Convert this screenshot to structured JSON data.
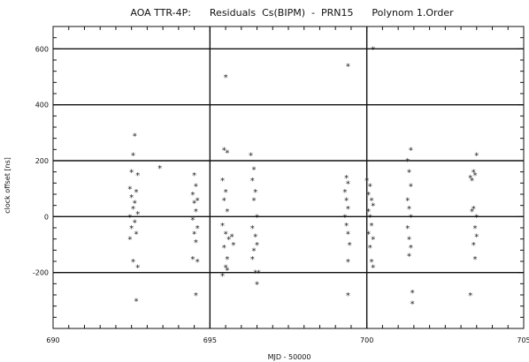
{
  "chart_data": {
    "type": "scatter",
    "title": "AOA TTR-4P:      Residuals  Cs(BIPM)  -  PRN15      Polynom 1.Order",
    "xlabel": "MJD - 50000",
    "ylabel": "clock offset [ns]",
    "xlim": [
      690,
      705
    ],
    "ylim": [
      -400,
      680
    ],
    "x_ticks": [
      690,
      695,
      700,
      705
    ],
    "y_ticks": [
      -200,
      0,
      200,
      400,
      600
    ],
    "grid": true,
    "series": [
      {
        "marker": "*",
        "points": [
          {
            "x": 692.6,
            "y": 290
          },
          {
            "x": 692.55,
            "y": 220
          },
          {
            "x": 692.5,
            "y": 160
          },
          {
            "x": 692.7,
            "y": 150
          },
          {
            "x": 692.45,
            "y": 100
          },
          {
            "x": 692.65,
            "y": 90
          },
          {
            "x": 692.5,
            "y": 70
          },
          {
            "x": 692.6,
            "y": 50
          },
          {
            "x": 692.55,
            "y": 30
          },
          {
            "x": 692.7,
            "y": 10
          },
          {
            "x": 692.45,
            "y": 0
          },
          {
            "x": 692.6,
            "y": -20
          },
          {
            "x": 692.5,
            "y": -40
          },
          {
            "x": 692.65,
            "y": -60
          },
          {
            "x": 692.45,
            "y": -80
          },
          {
            "x": 692.55,
            "y": -160
          },
          {
            "x": 692.7,
            "y": -180
          },
          {
            "x": 692.65,
            "y": -300
          },
          {
            "x": 693.4,
            "y": 175
          },
          {
            "x": 694.5,
            "y": 150
          },
          {
            "x": 694.55,
            "y": 110
          },
          {
            "x": 694.45,
            "y": 80
          },
          {
            "x": 694.6,
            "y": 60
          },
          {
            "x": 694.5,
            "y": 50
          },
          {
            "x": 694.55,
            "y": 20
          },
          {
            "x": 694.45,
            "y": -10
          },
          {
            "x": 694.6,
            "y": -40
          },
          {
            "x": 694.5,
            "y": -60
          },
          {
            "x": 694.55,
            "y": -90
          },
          {
            "x": 694.45,
            "y": -150
          },
          {
            "x": 694.6,
            "y": -160
          },
          {
            "x": 694.55,
            "y": -280
          },
          {
            "x": 695.5,
            "y": 500
          },
          {
            "x": 695.45,
            "y": 240
          },
          {
            "x": 695.55,
            "y": 230
          },
          {
            "x": 695.4,
            "y": 130
          },
          {
            "x": 695.5,
            "y": 90
          },
          {
            "x": 695.45,
            "y": 60
          },
          {
            "x": 695.55,
            "y": 20
          },
          {
            "x": 695.4,
            "y": -30
          },
          {
            "x": 695.5,
            "y": -60
          },
          {
            "x": 695.6,
            "y": -80
          },
          {
            "x": 695.45,
            "y": -110
          },
          {
            "x": 695.55,
            "y": -150
          },
          {
            "x": 695.5,
            "y": -180
          },
          {
            "x": 695.4,
            "y": -210
          },
          {
            "x": 695.55,
            "y": -190
          },
          {
            "x": 695.7,
            "y": -70
          },
          {
            "x": 695.75,
            "y": -100
          },
          {
            "x": 696.3,
            "y": 220
          },
          {
            "x": 696.4,
            "y": 170
          },
          {
            "x": 696.35,
            "y": 130
          },
          {
            "x": 696.45,
            "y": 90
          },
          {
            "x": 696.4,
            "y": 60
          },
          {
            "x": 696.5,
            "y": 0
          },
          {
            "x": 696.35,
            "y": -40
          },
          {
            "x": 696.45,
            "y": -70
          },
          {
            "x": 696.5,
            "y": -100
          },
          {
            "x": 696.4,
            "y": -120
          },
          {
            "x": 696.35,
            "y": -150
          },
          {
            "x": 696.45,
            "y": -200
          },
          {
            "x": 696.55,
            "y": -200
          },
          {
            "x": 696.5,
            "y": -240
          },
          {
            "x": 699.4,
            "y": 540
          },
          {
            "x": 699.35,
            "y": 140
          },
          {
            "x": 699.4,
            "y": 120
          },
          {
            "x": 699.3,
            "y": 90
          },
          {
            "x": 699.35,
            "y": 60
          },
          {
            "x": 699.4,
            "y": 30
          },
          {
            "x": 699.3,
            "y": 0
          },
          {
            "x": 699.35,
            "y": -30
          },
          {
            "x": 699.4,
            "y": -60
          },
          {
            "x": 699.45,
            "y": -100
          },
          {
            "x": 699.4,
            "y": -160
          },
          {
            "x": 699.4,
            "y": -280
          },
          {
            "x": 700.2,
            "y": 600
          },
          {
            "x": 700.0,
            "y": 130
          },
          {
            "x": 700.1,
            "y": 110
          },
          {
            "x": 700.05,
            "y": 80
          },
          {
            "x": 700.15,
            "y": 60
          },
          {
            "x": 700.2,
            "y": 40
          },
          {
            "x": 700.05,
            "y": 20
          },
          {
            "x": 700.1,
            "y": 0
          },
          {
            "x": 700.15,
            "y": -30
          },
          {
            "x": 700.05,
            "y": -60
          },
          {
            "x": 700.2,
            "y": -80
          },
          {
            "x": 700.1,
            "y": -110
          },
          {
            "x": 700.15,
            "y": -160
          },
          {
            "x": 700.2,
            "y": -180
          },
          {
            "x": 701.4,
            "y": 240
          },
          {
            "x": 701.3,
            "y": 200
          },
          {
            "x": 701.35,
            "y": 160
          },
          {
            "x": 701.4,
            "y": 110
          },
          {
            "x": 701.3,
            "y": 60
          },
          {
            "x": 701.35,
            "y": 30
          },
          {
            "x": 701.4,
            "y": 0
          },
          {
            "x": 701.3,
            "y": -40
          },
          {
            "x": 701.35,
            "y": -80
          },
          {
            "x": 701.4,
            "y": -110
          },
          {
            "x": 701.35,
            "y": -140
          },
          {
            "x": 701.45,
            "y": -270
          },
          {
            "x": 701.45,
            "y": -310
          },
          {
            "x": 703.5,
            "y": 220
          },
          {
            "x": 703.4,
            "y": 160
          },
          {
            "x": 703.45,
            "y": 150
          },
          {
            "x": 703.3,
            "y": 140
          },
          {
            "x": 703.35,
            "y": 130
          },
          {
            "x": 703.4,
            "y": 30
          },
          {
            "x": 703.35,
            "y": 20
          },
          {
            "x": 703.5,
            "y": 0
          },
          {
            "x": 703.45,
            "y": -40
          },
          {
            "x": 703.5,
            "y": -70
          },
          {
            "x": 703.4,
            "y": -100
          },
          {
            "x": 703.45,
            "y": -150
          },
          {
            "x": 703.3,
            "y": -280
          }
        ]
      }
    ]
  }
}
